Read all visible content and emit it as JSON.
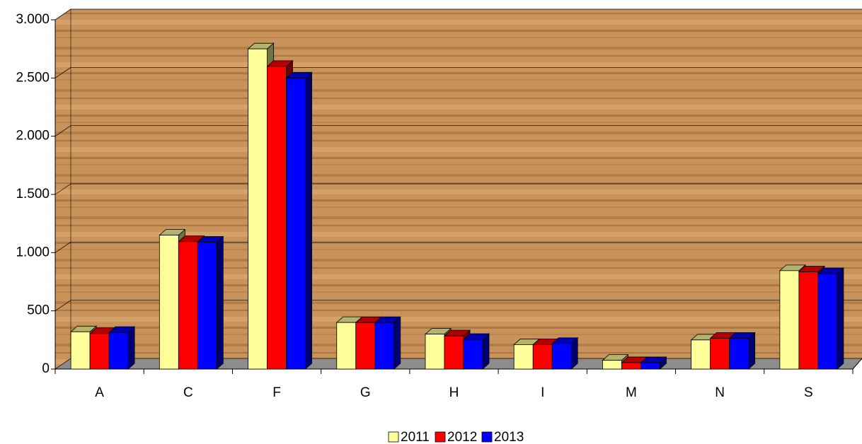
{
  "chart_data": {
    "type": "bar",
    "categories": [
      "A",
      "C",
      "F",
      "G",
      "H",
      "I",
      "M",
      "N",
      "S"
    ],
    "series": [
      {
        "name": "2011",
        "color": "#ffff99",
        "values": [
          320,
          1150,
          2750,
          400,
          300,
          210,
          75,
          250,
          845
        ]
      },
      {
        "name": "2012",
        "color": "#ff0000",
        "values": [
          305,
          1095,
          2600,
          400,
          285,
          210,
          55,
          265,
          835
        ]
      },
      {
        "name": "2013",
        "color": "#0000ff",
        "values": [
          315,
          1090,
          2500,
          400,
          255,
          220,
          55,
          265,
          820
        ]
      }
    ],
    "ylim": [
      0,
      3000
    ],
    "yticks": [
      0,
      500,
      {
        "value": 1000,
        "label": "1.000"
      },
      {
        "value": 1500,
        "label": "1.500"
      },
      {
        "value": 2000,
        "label": "2.000"
      },
      {
        "value": 2500,
        "label": "2.500"
      },
      {
        "value": 3000,
        "label": "3.000"
      }
    ],
    "grid": true,
    "legend": "bottom"
  }
}
